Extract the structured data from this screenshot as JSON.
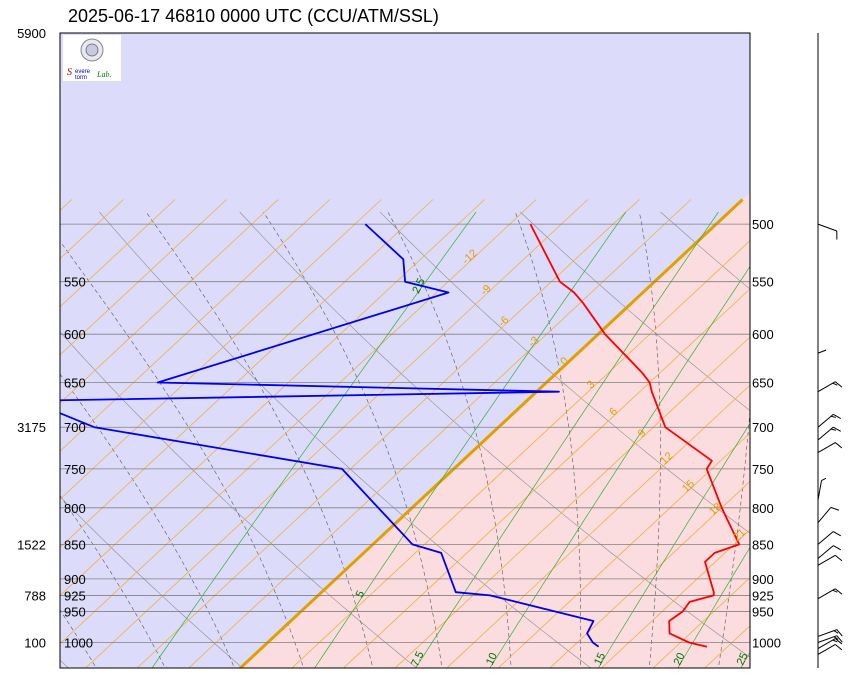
{
  "title": "2025-06-17 46810 0000 UTC (CCU/ATM/SSL)",
  "logo": {
    "text_main": "Severe",
    "text_sub": "Storm Lab."
  },
  "colors": {
    "cold_fill": "#dcdcfa",
    "warm_fill": "#fbdde0",
    "zero_isotherm": "#e0a000",
    "isotherm": "#f0b040",
    "dry_adiabat": "#8c8c8c",
    "moist_adiabat": "#555555",
    "mixing_ratio": "#30b030",
    "temperature": "#ff0000",
    "dewpoint": "#0000ee",
    "isobar": "#808080"
  },
  "chart_data": {
    "type": "skew-t",
    "p_range": [
      1050,
      500
    ],
    "pressure_levels": [
      500,
      550,
      600,
      650,
      700,
      750,
      800,
      850,
      900,
      925,
      950,
      1000
    ],
    "height_labels": [
      {
        "p": 500,
        "h": "5900"
      },
      {
        "p": 700,
        "h": "3175"
      },
      {
        "p": 850,
        "h": "1522"
      },
      {
        "p": 925,
        "h": "788"
      },
      {
        "p": 1000,
        "h": "100"
      }
    ],
    "isotherm_labels": [
      {
        "t": -12,
        "p": 530
      },
      {
        "t": -9,
        "p": 560
      },
      {
        "t": -6,
        "p": 590
      },
      {
        "t": -3,
        "p": 610
      },
      {
        "t": 0,
        "p": 630
      },
      {
        "t": 3,
        "p": 655
      },
      {
        "t": 6,
        "p": 685
      },
      {
        "t": 9,
        "p": 710
      },
      {
        "t": 12,
        "p": 740
      },
      {
        "t": 15,
        "p": 775
      },
      {
        "t": 18,
        "p": 805
      },
      {
        "t": 21,
        "p": 840
      },
      {
        "t": 24,
        "p": 875
      },
      {
        "t": 27,
        "p": 915
      },
      {
        "t": 30,
        "p": 960
      },
      {
        "t": 33,
        "p": 995
      }
    ],
    "mixing_ratio_labels": [
      {
        "w": "2.5",
        "p": 555
      },
      {
        "w": "5",
        "p": 925
      },
      {
        "w": "7.5",
        "p": 1030
      },
      {
        "w": "10",
        "p": 1030
      },
      {
        "w": "15",
        "p": 1030
      },
      {
        "w": "20",
        "p": 1030
      },
      {
        "w": "25",
        "p": 1030
      },
      {
        "w": "30",
        "p": 1030
      }
    ],
    "temperature": [
      {
        "p": 1007,
        "t": 25.8
      },
      {
        "p": 1000,
        "t": 24.5
      },
      {
        "p": 985,
        "t": 22.8
      },
      {
        "p": 965,
        "t": 22.0
      },
      {
        "p": 950,
        "t": 22.2
      },
      {
        "p": 935,
        "t": 22.0
      },
      {
        "p": 925,
        "t": 23.0
      },
      {
        "p": 920,
        "t": 22.8
      },
      {
        "p": 875,
        "t": 20.4
      },
      {
        "p": 862,
        "t": 20.4
      },
      {
        "p": 850,
        "t": 21.3
      },
      {
        "p": 800,
        "t": 18.0
      },
      {
        "p": 750,
        "t": 14.7
      },
      {
        "p": 740,
        "t": 14.5
      },
      {
        "p": 700,
        "t": 9.7
      },
      {
        "p": 660,
        "t": 6.7
      },
      {
        "p": 650,
        "t": 6.0
      },
      {
        "p": 640,
        "t": 5.0
      },
      {
        "p": 600,
        "t": 0.4
      },
      {
        "p": 570,
        "t": -2.8
      },
      {
        "p": 560,
        "t": -4.0
      },
      {
        "p": 550,
        "t": -5.5
      },
      {
        "p": 500,
        "t": -10.8
      }
    ],
    "dewpoint": [
      {
        "p": 1007,
        "t": 19.5
      },
      {
        "p": 1000,
        "t": 18.9
      },
      {
        "p": 985,
        "t": 18.0
      },
      {
        "p": 965,
        "t": 17.6
      },
      {
        "p": 925,
        "t": 10.0
      },
      {
        "p": 920,
        "t": 7.8
      },
      {
        "p": 862,
        "t": 4.5
      },
      {
        "p": 850,
        "t": 2.3
      },
      {
        "p": 750,
        "t": -6.5
      },
      {
        "p": 700,
        "t": -23.5
      },
      {
        "p": 670,
        "t": -28.9
      },
      {
        "p": 660,
        "t": 1.3
      },
      {
        "p": 650,
        "t": -22.6
      },
      {
        "p": 560,
        "t": -11.3
      },
      {
        "p": 550,
        "t": -14.5
      },
      {
        "p": 530,
        "t": -16.0
      },
      {
        "p": 500,
        "t": -20.4
      }
    ],
    "wind_barbs": [
      {
        "p": 500,
        "dir": 290,
        "spd": 10
      },
      {
        "p": 640,
        "dir": 180,
        "spd": 10
      },
      {
        "p": 660,
        "dir": 240,
        "spd": 15
      },
      {
        "p": 700,
        "dir": 230,
        "spd": 15
      },
      {
        "p": 715,
        "dir": 230,
        "spd": 15
      },
      {
        "p": 730,
        "dir": 240,
        "spd": 10
      },
      {
        "p": 790,
        "dir": 190,
        "spd": 5
      },
      {
        "p": 820,
        "dir": 220,
        "spd": 10
      },
      {
        "p": 850,
        "dir": 230,
        "spd": 10
      },
      {
        "p": 870,
        "dir": 230,
        "spd": 10
      },
      {
        "p": 880,
        "dir": 240,
        "spd": 10
      },
      {
        "p": 930,
        "dir": 240,
        "spd": 15
      },
      {
        "p": 990,
        "dir": 250,
        "spd": 15
      },
      {
        "p": 1000,
        "dir": 250,
        "spd": 15
      },
      {
        "p": 1010,
        "dir": 240,
        "spd": 15
      },
      {
        "p": 1020,
        "dir": 240,
        "spd": 10
      }
    ]
  }
}
